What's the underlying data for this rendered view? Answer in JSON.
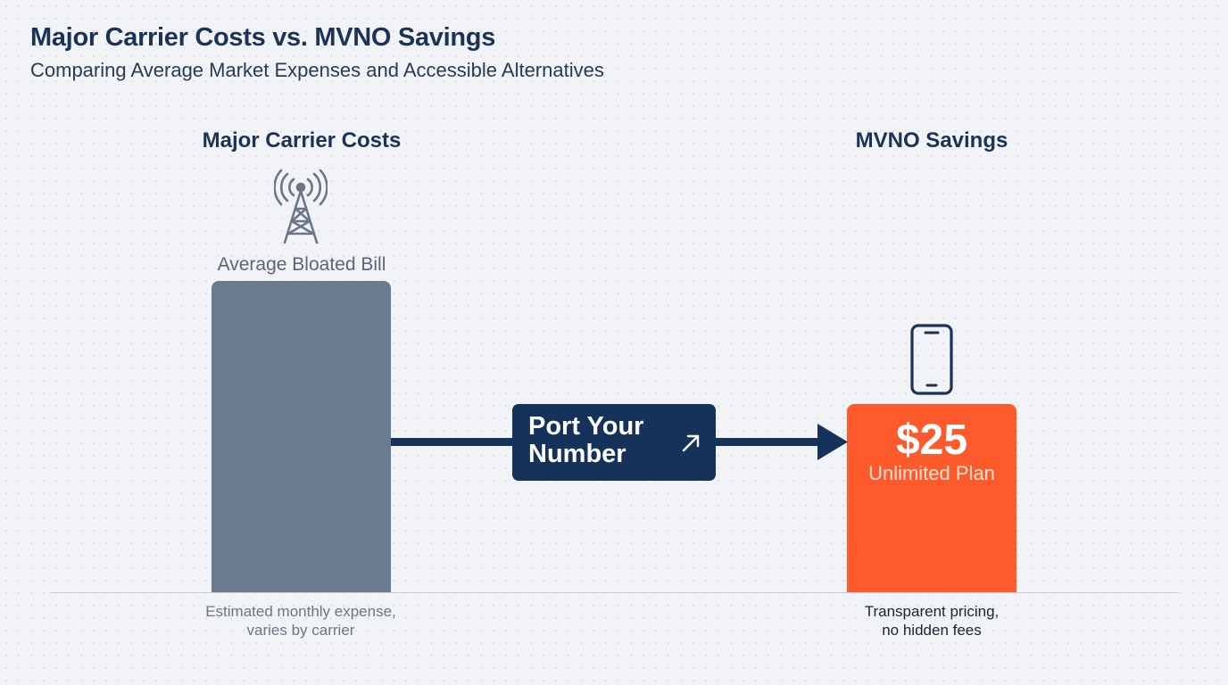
{
  "header": {
    "title": "Major Carrier Costs vs. MVNO Savings",
    "subtitle": "Comparing Average Market Expenses and Accessible Alternatives"
  },
  "left": {
    "title": "Major Carrier Costs",
    "icon": "cell-tower-icon",
    "bar_label": "Average Bloated Bill",
    "footnote_line1": "Estimated monthly expense,",
    "footnote_line2": "varies by carrier"
  },
  "right": {
    "title": "MVNO Savings",
    "icon": "smartphone-icon",
    "price": "$25",
    "plan": "Unlimited Plan",
    "footnote_line1": "Transparent pricing,",
    "footnote_line2": "no hidden fees"
  },
  "cta": {
    "label": "Port Your Number",
    "icon": "arrow-up-right-icon"
  },
  "colors": {
    "carrier_bar": "#6b7b8f",
    "mvno_bar": "#ff5a2c",
    "navy": "#15325a",
    "background": "#f1f3f6"
  },
  "chart_data": {
    "type": "bar",
    "title": "Major Carrier Costs vs. MVNO Savings",
    "subtitle": "Comparing Average Market Expenses and Accessible Alternatives",
    "categories": [
      "Major Carrier Costs",
      "MVNO Savings"
    ],
    "values": [
      null,
      25
    ],
    "value_labels": [
      "Average Bloated Bill",
      "$25"
    ],
    "note": "Carrier bar value unlabeled; drawn visually about 1.65 times the MVNO bar",
    "relative_heights": [
      1.65,
      1.0
    ],
    "ylim": [
      0,
      null
    ],
    "grid": false,
    "legend": "none"
  }
}
